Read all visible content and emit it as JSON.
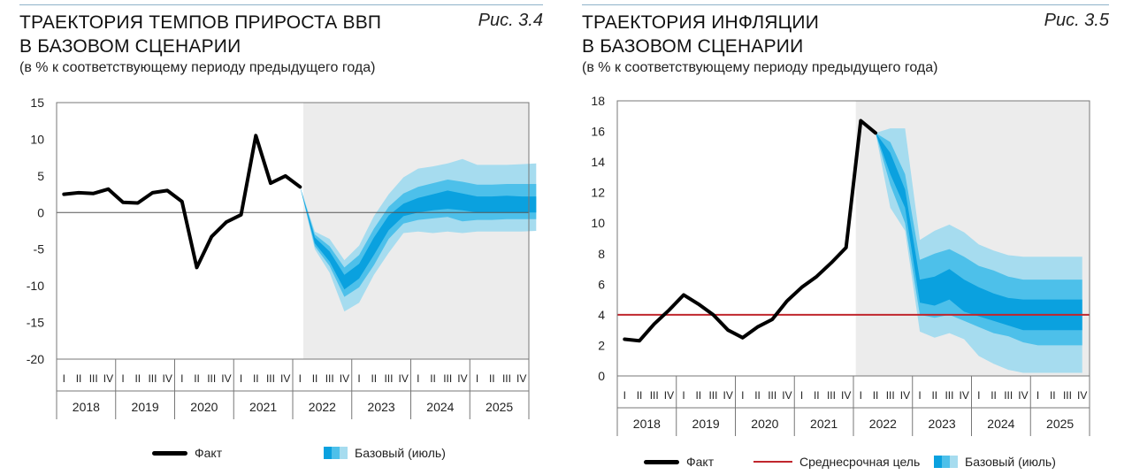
{
  "left": {
    "title_line1": "ТРАЕКТОРИЯ ТЕМПОВ ПРИРОСТА ВВП",
    "title_line2": "В БАЗОВОМ СЦЕНАРИИ",
    "subtitle": "(в % к соответствующему периоду предыдущего года)",
    "fig_label": "Рис. 3.4",
    "legend_fact": "Факт",
    "legend_base": "Базовый (июль)"
  },
  "right": {
    "title_line1": "ТРАЕКТОРИЯ ИНФЛЯЦИИ",
    "title_line2": "В БАЗОВОМ СЦЕНАРИИ",
    "subtitle": "(в % к соответствующему периоду предыдущего года)",
    "fig_label": "Рис. 3.5",
    "legend_fact": "Факт",
    "legend_target": "Среднесрочная цель",
    "legend_base": "Базовый (июль)"
  },
  "colors": {
    "fact": "#000000",
    "target": "#c0262d",
    "forecast_shade": "#ececec",
    "band_outer": "#a6dcef",
    "band_mid": "#4dc0ea",
    "band_inner": "#0aa1df",
    "axis": "#555555"
  },
  "chart_data": [
    {
      "type": "area",
      "quarters": [
        "I",
        "II",
        "III",
        "IV"
      ],
      "years": [
        "2018",
        "2019",
        "2020",
        "2021",
        "2022",
        "2023",
        "2024",
        "2025"
      ],
      "ylim": [
        -20,
        15
      ],
      "yticks": [
        15,
        10,
        5,
        0,
        -5,
        -10,
        -15,
        -20
      ],
      "forecast_start_quarter_index": 16,
      "fact": [
        2.5,
        2.7,
        2.6,
        3.2,
        1.4,
        1.3,
        2.7,
        3.0,
        1.5,
        -7.5,
        -3.3,
        -1.3,
        -0.3,
        10.5,
        4.0,
        5.0,
        3.5
      ],
      "forecast_center": [
        3.5,
        -3.8,
        -6.0,
        -9.5,
        -8.0,
        -4.5,
        -1.5,
        0.2,
        0.8,
        1.3,
        1.6,
        1.3,
        1.0,
        1.0,
        1.1,
        1.0,
        1.0
      ],
      "band_inner": [
        [
          3.5,
          3.5
        ],
        [
          -4.2,
          -3.4
        ],
        [
          -6.7,
          -5.3
        ],
        [
          -10.5,
          -8.5
        ],
        [
          -9.0,
          -7.0
        ],
        [
          -5.8,
          -3.4
        ],
        [
          -2.4,
          -0.4
        ],
        [
          -0.5,
          1.2
        ],
        [
          0.0,
          2.0
        ],
        [
          0.3,
          2.5
        ],
        [
          0.5,
          3.0
        ],
        [
          0.3,
          2.6
        ],
        [
          0.0,
          2.2
        ],
        [
          0.0,
          2.2
        ],
        [
          0.0,
          2.3
        ],
        [
          0.0,
          2.2
        ],
        [
          0.0,
          2.2
        ]
      ],
      "band_mid": [
        [
          3.5,
          3.5
        ],
        [
          -4.6,
          -3.0
        ],
        [
          -7.3,
          -4.6
        ],
        [
          -11.5,
          -7.5
        ],
        [
          -10.2,
          -5.8
        ],
        [
          -7.2,
          -2.2
        ],
        [
          -3.6,
          0.8
        ],
        [
          -1.5,
          2.6
        ],
        [
          -1.0,
          3.5
        ],
        [
          -0.8,
          4.0
        ],
        [
          -0.6,
          4.5
        ],
        [
          -1.2,
          4.2
        ],
        [
          -1.0,
          3.8
        ],
        [
          -1.0,
          3.8
        ],
        [
          -0.9,
          3.9
        ],
        [
          -0.9,
          3.9
        ],
        [
          -0.9,
          3.9
        ]
      ],
      "band_outer": [
        [
          3.5,
          3.5
        ],
        [
          -5.0,
          -2.6
        ],
        [
          -8.2,
          -3.6
        ],
        [
          -13.5,
          -6.5
        ],
        [
          -12.3,
          -4.5
        ],
        [
          -8.5,
          -0.5
        ],
        [
          -5.5,
          2.5
        ],
        [
          -2.8,
          4.8
        ],
        [
          -2.6,
          6.0
        ],
        [
          -2.8,
          6.3
        ],
        [
          -2.6,
          6.7
        ],
        [
          -2.8,
          7.3
        ],
        [
          -2.6,
          6.5
        ],
        [
          -2.6,
          6.5
        ],
        [
          -2.6,
          6.5
        ],
        [
          -2.6,
          6.6
        ],
        [
          -2.5,
          6.7
        ]
      ]
    },
    {
      "type": "area",
      "quarters": [
        "I",
        "II",
        "III",
        "IV"
      ],
      "years": [
        "2018",
        "2019",
        "2020",
        "2021",
        "2022",
        "2023",
        "2024",
        "2025"
      ],
      "ylim": [
        0,
        18
      ],
      "yticks": [
        18,
        16,
        14,
        12,
        10,
        8,
        6,
        4,
        2,
        0
      ],
      "target": 4,
      "forecast_start_quarter_index": 17,
      "fact": [
        2.4,
        2.3,
        3.4,
        4.3,
        5.3,
        4.7,
        4.0,
        3.0,
        2.5,
        3.2,
        3.7,
        4.9,
        5.8,
        6.5,
        7.4,
        8.4,
        16.7,
        15.9
      ],
      "forecast_center": [
        15.9,
        14.0,
        11.5,
        5.5,
        5.5,
        6.0,
        5.2,
        4.8,
        4.4,
        4.1,
        4.0,
        4.0,
        4.0,
        4.0,
        4.0
      ],
      "band_inner": [
        [
          15.9,
          15.9
        ],
        [
          13.2,
          14.6
        ],
        [
          11.0,
          12.2
        ],
        [
          4.8,
          6.3
        ],
        [
          4.6,
          6.5
        ],
        [
          5.0,
          7.0
        ],
        [
          4.2,
          6.3
        ],
        [
          3.9,
          5.8
        ],
        [
          3.6,
          5.4
        ],
        [
          3.3,
          5.1
        ],
        [
          3.0,
          5.0
        ],
        [
          3.0,
          5.0
        ],
        [
          3.0,
          5.0
        ],
        [
          3.0,
          5.0
        ],
        [
          3.0,
          5.0
        ]
      ],
      "band_mid": [
        [
          15.9,
          15.9
        ],
        [
          12.5,
          15.3
        ],
        [
          10.0,
          13.2
        ],
        [
          4.0,
          7.6
        ],
        [
          3.8,
          8.0
        ],
        [
          4.0,
          8.3
        ],
        [
          3.6,
          7.8
        ],
        [
          3.2,
          7.2
        ],
        [
          2.8,
          6.9
        ],
        [
          2.6,
          6.5
        ],
        [
          2.2,
          6.3
        ],
        [
          2.0,
          6.3
        ],
        [
          2.0,
          6.3
        ],
        [
          2.0,
          6.3
        ],
        [
          2.0,
          6.3
        ]
      ],
      "band_outer": [
        [
          15.9,
          15.9
        ],
        [
          11.0,
          16.2
        ],
        [
          9.5,
          16.2
        ],
        [
          2.9,
          8.9
        ],
        [
          2.5,
          9.5
        ],
        [
          2.8,
          9.9
        ],
        [
          2.4,
          9.4
        ],
        [
          1.3,
          8.6
        ],
        [
          0.8,
          8.2
        ],
        [
          0.4,
          7.9
        ],
        [
          0.2,
          7.8
        ],
        [
          0.2,
          7.8
        ],
        [
          0.2,
          7.8
        ],
        [
          0.2,
          7.8
        ],
        [
          0.2,
          7.8
        ]
      ]
    }
  ]
}
